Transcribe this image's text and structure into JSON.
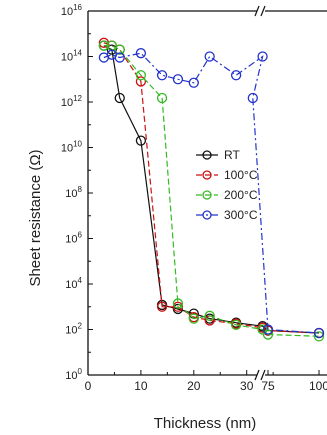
{
  "chart_data": {
    "type": "line",
    "title": "",
    "xlabel": "Thickness (nm)",
    "ylabel": "Sheet resistance (Ω)",
    "yscale": "log",
    "ylim_exponent": [
      0,
      16
    ],
    "xaxis_break": true,
    "xtick_labels": [
      "0",
      "10",
      "20",
      "30",
      "75",
      "100"
    ],
    "ytick_exponents": [
      0,
      2,
      4,
      6,
      8,
      10,
      12,
      14,
      16
    ],
    "ytick_base": "10",
    "legend": {
      "placement": "center-right",
      "frame": false
    },
    "series": [
      {
        "name": "RT",
        "color": "#111111",
        "dash": "solid",
        "points": [
          {
            "x": 3,
            "y": 300000000000000.0
          },
          {
            "x": 4.5,
            "y": 200000000000000.0
          },
          {
            "x": 6,
            "y": 1500000000000.0
          },
          {
            "x": 10,
            "y": 20000000000.0
          },
          {
            "x": 14,
            "y": 1200.0
          },
          {
            "x": 17,
            "y": 800.0
          },
          {
            "x": 20,
            "y": 500.0
          },
          {
            "x": 23,
            "y": 300.0
          },
          {
            "x": 28,
            "y": 200.0
          },
          {
            "x": 33,
            "y": 140.0
          },
          {
            "x": 75,
            "y": 90.0
          },
          {
            "x": 100,
            "y": 70.0
          }
        ]
      },
      {
        "name": "100°C",
        "color": "#cc1111",
        "dash": "dash",
        "points": [
          {
            "x": 3,
            "y": 400000000000000.0
          },
          {
            "x": 4.5,
            "y": 300000000000000.0
          },
          {
            "x": 6,
            "y": 200000000000000.0
          },
          {
            "x": 10,
            "y": 8000000000000.0
          },
          {
            "x": 14,
            "y": 1000.0
          },
          {
            "x": 17,
            "y": 1000.0
          },
          {
            "x": 20,
            "y": 350.0
          },
          {
            "x": 23,
            "y": 250.0
          },
          {
            "x": 28,
            "y": 180.0
          },
          {
            "x": 33,
            "y": 120.0
          },
          {
            "x": 75,
            "y": 90.0
          },
          {
            "x": 100,
            "y": 70.0
          }
        ]
      },
      {
        "name": "200°C",
        "color": "#33bb22",
        "dash": "dash",
        "points": [
          {
            "x": 3,
            "y": 300000000000000.0
          },
          {
            "x": 4.5,
            "y": 300000000000000.0
          },
          {
            "x": 6,
            "y": 200000000000000.0
          },
          {
            "x": 10,
            "y": 15000000000000.0
          },
          {
            "x": 14,
            "y": 1500000000000.0
          },
          {
            "x": 17,
            "y": 1400.0
          },
          {
            "x": 20,
            "y": 300.0
          },
          {
            "x": 23,
            "y": 400.0
          },
          {
            "x": 28,
            "y": 160.0
          },
          {
            "x": 33,
            "y": 100.0
          },
          {
            "x": 75,
            "y": 60.0
          },
          {
            "x": 100,
            "y": 50.0
          }
        ]
      },
      {
        "name": "300°C",
        "color": "#2233cc",
        "dash": "dashdot",
        "points": [
          {
            "x": 3,
            "y": 90000000000000.0
          },
          {
            "x": 4.5,
            "y": 120000000000000.0
          },
          {
            "x": 6,
            "y": 90000000000000.0
          },
          {
            "x": 10,
            "y": 140000000000000.0
          },
          {
            "x": 14,
            "y": 15000000000000.0
          },
          {
            "x": 17,
            "y": 10000000000000.0
          },
          {
            "x": 20,
            "y": 7000000000000.0
          },
          {
            "x": 23,
            "y": 100000000000000.0
          },
          {
            "x": 28,
            "y": 15000000000000.0
          },
          {
            "x": 33,
            "y": 100000000000000.0
          },
          {
            "x": 37,
            "y": 1500000000000.0
          },
          {
            "x": 75,
            "y": 100.0
          },
          {
            "x": 100,
            "y": 70.0
          }
        ]
      }
    ]
  }
}
